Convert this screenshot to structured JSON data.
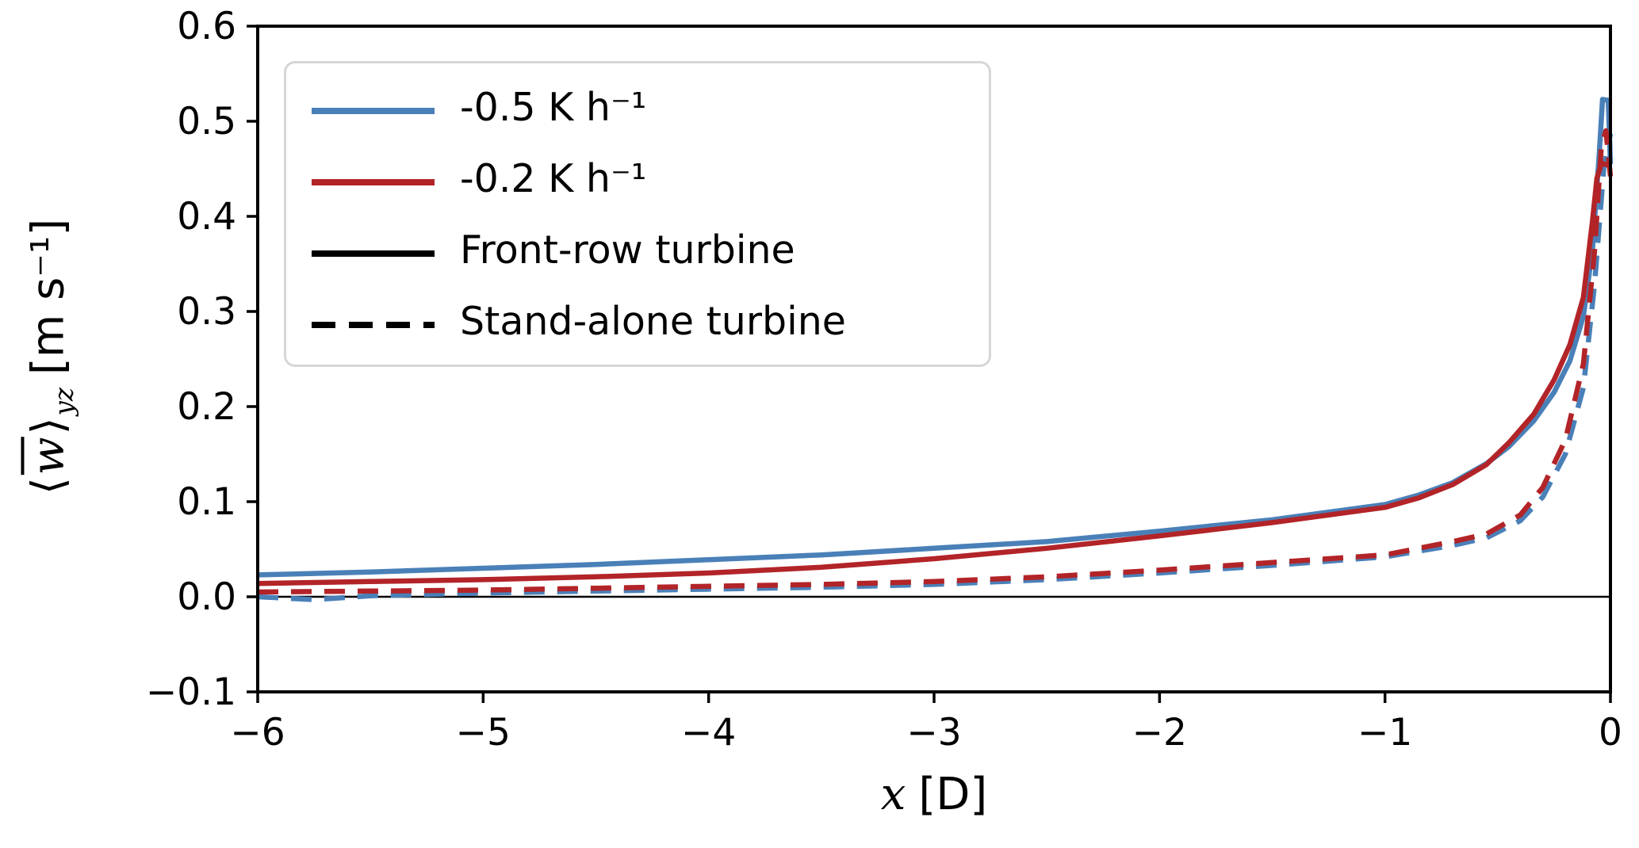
{
  "chart_data": {
    "type": "line",
    "title": "",
    "grid": false,
    "zero_line": true,
    "legend_position": "upper left",
    "xlim": [
      -6,
      0
    ],
    "ylim": [
      -0.1,
      0.6
    ],
    "xlabel": {
      "symbol": "x",
      "unit": "[D]"
    },
    "ylabel": {
      "open": "⟨",
      "symbol": "w",
      "close": "⟩",
      "sub": "yz",
      "unit": "[m s⁻¹]"
    },
    "xticks": [
      {
        "value": -6,
        "label": "−6"
      },
      {
        "value": -5,
        "label": "−5"
      },
      {
        "value": -4,
        "label": "−4"
      },
      {
        "value": -3,
        "label": "−3"
      },
      {
        "value": -2,
        "label": "−2"
      },
      {
        "value": -1,
        "label": "−1"
      },
      {
        "value": 0,
        "label": "0"
      }
    ],
    "yticks": [
      {
        "value": -0.1,
        "label": "−0.1"
      },
      {
        "value": 0.0,
        "label": "0.0"
      },
      {
        "value": 0.1,
        "label": "0.1"
      },
      {
        "value": 0.2,
        "label": "0.2"
      },
      {
        "value": 0.3,
        "label": "0.3"
      },
      {
        "value": 0.4,
        "label": "0.4"
      },
      {
        "value": 0.5,
        "label": "0.5"
      },
      {
        "value": 0.6,
        "label": "0.6"
      }
    ],
    "colors": {
      "blue": "#4a80b8",
      "red": "#b22428",
      "black": "#000000",
      "legend_border": "#d6d6d6"
    },
    "series": [
      {
        "name": "Stand-alone turbine, -0.5 K h⁻¹",
        "color": "#4a80b8",
        "dashed": true,
        "x": [
          -6,
          -5.75,
          -5.5,
          -5,
          -4.5,
          -4,
          -3.5,
          -3,
          -2.5,
          -2,
          -1.5,
          -1,
          -0.7,
          -0.55,
          -0.4,
          -0.3,
          -0.2,
          -0.12,
          -0.07,
          -0.03,
          0
        ],
        "y": [
          0.0,
          -0.003,
          0.001,
          0.004,
          0.006,
          0.008,
          0.01,
          0.013,
          0.018,
          0.025,
          0.033,
          0.042,
          0.054,
          0.062,
          0.08,
          0.105,
          0.15,
          0.22,
          0.33,
          0.45,
          0.487
        ]
      },
      {
        "name": "Front-row turbine, -0.5 K h⁻¹",
        "color": "#4a80b8",
        "dashed": false,
        "x": [
          -6,
          -5.5,
          -5,
          -4.5,
          -4,
          -3.5,
          -3,
          -2.5,
          -2,
          -1.75,
          -1.5,
          -1.25,
          -1,
          -0.85,
          -0.7,
          -0.55,
          -0.45,
          -0.34,
          -0.25,
          -0.18,
          -0.12,
          -0.08,
          -0.05,
          -0.035,
          -0.01,
          0
        ],
        "y": [
          0.023,
          0.026,
          0.03,
          0.034,
          0.039,
          0.044,
          0.051,
          0.058,
          0.069,
          0.075,
          0.081,
          0.089,
          0.097,
          0.107,
          0.12,
          0.14,
          0.158,
          0.185,
          0.215,
          0.248,
          0.295,
          0.365,
          0.465,
          0.523,
          0.522,
          0.455
        ]
      },
      {
        "name": "Stand-alone turbine, -0.2 K h⁻¹",
        "color": "#b22428",
        "dashed": true,
        "x": [
          -6,
          -5.5,
          -5,
          -4.5,
          -4,
          -3.5,
          -3,
          -2.5,
          -2,
          -1.5,
          -1,
          -0.7,
          -0.55,
          -0.4,
          -0.3,
          -0.2,
          -0.12,
          -0.07,
          -0.04,
          -0.02,
          0
        ],
        "y": [
          0.005,
          0.006,
          0.007,
          0.009,
          0.011,
          0.013,
          0.016,
          0.021,
          0.028,
          0.036,
          0.044,
          0.058,
          0.066,
          0.086,
          0.115,
          0.165,
          0.245,
          0.365,
          0.475,
          0.49,
          0.442
        ]
      },
      {
        "name": "Front-row turbine, -0.2 K h⁻¹",
        "color": "#b22428",
        "dashed": false,
        "x": [
          -6,
          -5.5,
          -5,
          -4.5,
          -4,
          -3.5,
          -3,
          -2.5,
          -2,
          -1.75,
          -1.5,
          -1.25,
          -1,
          -0.85,
          -0.7,
          -0.55,
          -0.45,
          -0.34,
          -0.25,
          -0.18,
          -0.12,
          -0.08,
          -0.06,
          -0.04,
          0
        ],
        "y": [
          0.014,
          0.016,
          0.018,
          0.021,
          0.025,
          0.031,
          0.04,
          0.051,
          0.064,
          0.071,
          0.078,
          0.086,
          0.094,
          0.104,
          0.118,
          0.139,
          0.162,
          0.192,
          0.228,
          0.265,
          0.315,
          0.395,
          0.44,
          0.456,
          0.453
        ]
      }
    ],
    "legend": [
      {
        "label": "-0.5 K h⁻¹",
        "color": "#4a80b8",
        "dashed": false
      },
      {
        "label": "-0.2 K h⁻¹",
        "color": "#b22428",
        "dashed": false
      },
      {
        "label": "Front-row turbine",
        "color": "#000000",
        "dashed": false
      },
      {
        "label": "Stand-alone turbine",
        "color": "#000000",
        "dashed": true
      }
    ]
  }
}
